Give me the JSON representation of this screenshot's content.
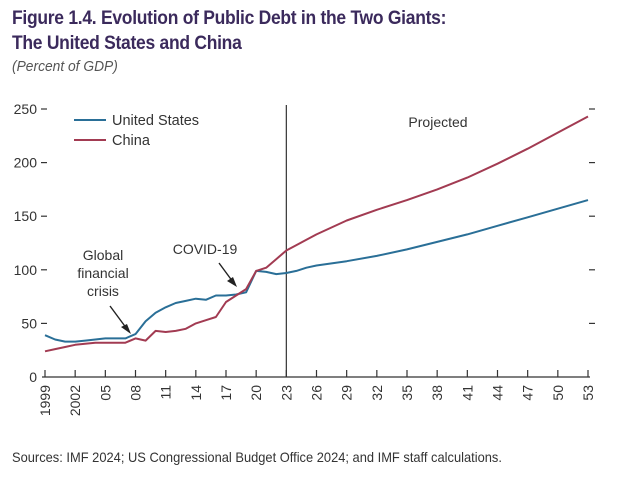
{
  "figure": {
    "title_line1": "Figure 1.4. Evolution of Public Debt in the Two Giants:",
    "title_line2": "The United States and China",
    "subtitle": "(Percent of GDP)",
    "source": "Sources: IMF 2024; US Congressional Budget Office 2024; and IMF staff calculations."
  },
  "chart_data": {
    "type": "line",
    "title": "Evolution of Public Debt in the Two Giants: The United States and China",
    "ylabel": "Percent of GDP",
    "xlabel": "",
    "xlim": [
      1999,
      2053
    ],
    "ylim": [
      0,
      250
    ],
    "yticks": [
      0,
      50,
      100,
      150,
      200,
      250
    ],
    "xticks": [
      {
        "year": 1999,
        "label": "1999"
      },
      {
        "year": 2002,
        "label": "2002"
      },
      {
        "year": 2005,
        "label": "05"
      },
      {
        "year": 2008,
        "label": "08"
      },
      {
        "year": 2011,
        "label": "11"
      },
      {
        "year": 2014,
        "label": "14"
      },
      {
        "year": 2017,
        "label": "17"
      },
      {
        "year": 2020,
        "label": "20"
      },
      {
        "year": 2023,
        "label": "23"
      },
      {
        "year": 2026,
        "label": "26"
      },
      {
        "year": 2029,
        "label": "29"
      },
      {
        "year": 2032,
        "label": "32"
      },
      {
        "year": 2035,
        "label": "35"
      },
      {
        "year": 2038,
        "label": "38"
      },
      {
        "year": 2041,
        "label": "41"
      },
      {
        "year": 2044,
        "label": "44"
      },
      {
        "year": 2047,
        "label": "47"
      },
      {
        "year": 2050,
        "label": "50"
      },
      {
        "year": 2053,
        "label": "53"
      }
    ],
    "legend": {
      "position": "top-left"
    },
    "grid": false,
    "projection_start": 2023,
    "projection_label": "Projected",
    "annotations": [
      {
        "text": "Global financial crisis",
        "year": 2008
      },
      {
        "text": "COVID-19",
        "year": 2019
      }
    ],
    "series": [
      {
        "name": "United States",
        "color": "#2a6f97",
        "points": [
          [
            1999,
            39
          ],
          [
            2000,
            35
          ],
          [
            2001,
            33
          ],
          [
            2002,
            33
          ],
          [
            2003,
            34
          ],
          [
            2004,
            35
          ],
          [
            2005,
            36
          ],
          [
            2006,
            36
          ],
          [
            2007,
            36
          ],
          [
            2008,
            40
          ],
          [
            2009,
            52
          ],
          [
            2010,
            60
          ],
          [
            2011,
            65
          ],
          [
            2012,
            69
          ],
          [
            2013,
            71
          ],
          [
            2014,
            73
          ],
          [
            2015,
            72
          ],
          [
            2016,
            76
          ],
          [
            2017,
            76
          ],
          [
            2018,
            77
          ],
          [
            2019,
            79
          ],
          [
            2020,
            99
          ],
          [
            2021,
            98
          ],
          [
            2022,
            96
          ],
          [
            2023,
            97
          ],
          [
            2024,
            99
          ],
          [
            2025,
            102
          ],
          [
            2026,
            104
          ],
          [
            2029,
            108
          ],
          [
            2032,
            113
          ],
          [
            2035,
            119
          ],
          [
            2038,
            126
          ],
          [
            2041,
            133
          ],
          [
            2044,
            141
          ],
          [
            2047,
            149
          ],
          [
            2050,
            157
          ],
          [
            2053,
            165
          ]
        ]
      },
      {
        "name": "China",
        "color": "#a23b52",
        "points": [
          [
            1999,
            24
          ],
          [
            2000,
            26
          ],
          [
            2001,
            28
          ],
          [
            2002,
            30
          ],
          [
            2003,
            31
          ],
          [
            2004,
            32
          ],
          [
            2005,
            32
          ],
          [
            2006,
            32
          ],
          [
            2007,
            32
          ],
          [
            2008,
            36
          ],
          [
            2009,
            34
          ],
          [
            2010,
            43
          ],
          [
            2011,
            42
          ],
          [
            2012,
            43
          ],
          [
            2013,
            45
          ],
          [
            2014,
            50
          ],
          [
            2015,
            53
          ],
          [
            2016,
            56
          ],
          [
            2017,
            70
          ],
          [
            2018,
            76
          ],
          [
            2019,
            82
          ],
          [
            2020,
            99
          ],
          [
            2021,
            102
          ],
          [
            2022,
            110
          ],
          [
            2023,
            118
          ],
          [
            2024,
            123
          ],
          [
            2025,
            128
          ],
          [
            2026,
            133
          ],
          [
            2029,
            146
          ],
          [
            2032,
            156
          ],
          [
            2035,
            165
          ],
          [
            2038,
            175
          ],
          [
            2041,
            186
          ],
          [
            2044,
            199
          ],
          [
            2047,
            213
          ],
          [
            2050,
            228
          ],
          [
            2053,
            243
          ]
        ]
      }
    ]
  }
}
